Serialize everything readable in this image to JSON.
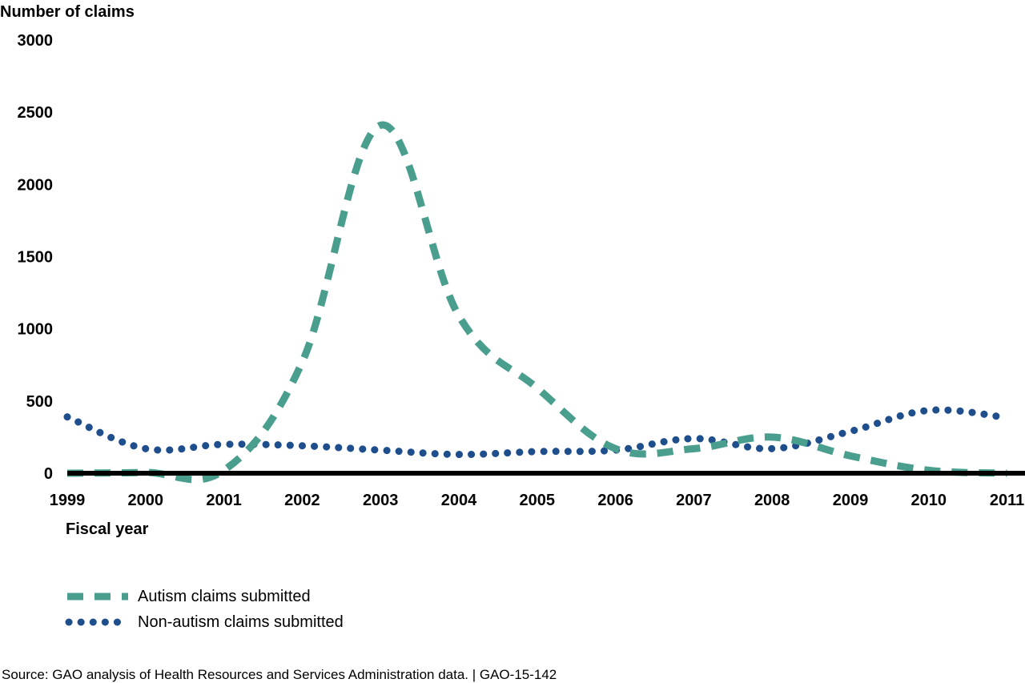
{
  "chart_data": {
    "type": "line",
    "ylabel": "Number of claims",
    "xlabel": "Fiscal year",
    "ylim": [
      0,
      3000
    ],
    "y_ticks": [
      "3000",
      "2500",
      "2000",
      "1500",
      "1000",
      "500",
      "0"
    ],
    "x_ticks": [
      "1999",
      "2000",
      "2001",
      "2002",
      "2003",
      "2004",
      "2005",
      "2006",
      "2007",
      "2008",
      "2009",
      "2010",
      "2011"
    ],
    "x": [
      1999,
      2000,
      2001,
      2002,
      2003,
      2004,
      2005,
      2006,
      2007,
      2008,
      2009,
      2010,
      2011
    ],
    "grid": false,
    "legend_position": "bottom-left",
    "series": [
      {
        "name": "Autism claims submitted",
        "style": "dashed",
        "color": "#4a9e8e",
        "values": [
          0,
          5,
          20,
          770,
          2410,
          1090,
          590,
          170,
          170,
          250,
          120,
          20,
          0
        ]
      },
      {
        "name": "Non-autism claims submitted",
        "style": "dotted",
        "color": "#1f4e8c",
        "values": [
          390,
          170,
          200,
          190,
          160,
          130,
          150,
          160,
          240,
          170,
          290,
          435,
          385
        ]
      }
    ],
    "source": "Source:  GAO analysis of Health Resources and Services Administration data. | GAO-15-142"
  }
}
